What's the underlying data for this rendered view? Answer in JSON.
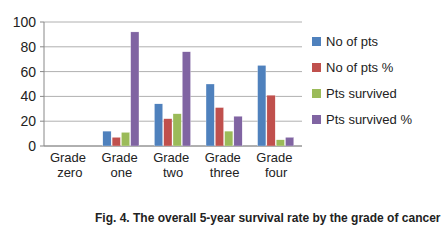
{
  "chart_data": {
    "type": "bar",
    "title": "Fig. 4. The overall 5-year survival rate by the grade of cancer",
    "categories": [
      "Grade zero",
      "Grade one",
      "Grade two",
      "Grade three",
      "Grade four"
    ],
    "series": [
      {
        "name": "No of pts",
        "color": "#4f81bd",
        "values": [
          0,
          12,
          34,
          50,
          65
        ]
      },
      {
        "name": "No of pts %",
        "color": "#c0504d",
        "values": [
          0,
          7,
          22,
          31,
          41
        ]
      },
      {
        "name": "Pts survived",
        "color": "#9bbb59",
        "values": [
          0,
          11,
          26,
          12,
          5
        ]
      },
      {
        "name": "Pts survived %",
        "color": "#8064a2",
        "values": [
          0,
          92,
          76,
          24,
          7
        ]
      }
    ],
    "ylim": [
      0,
      100
    ],
    "yticks": [
      0,
      20,
      40,
      60,
      80,
      100
    ],
    "grid": true,
    "legend": "right"
  }
}
